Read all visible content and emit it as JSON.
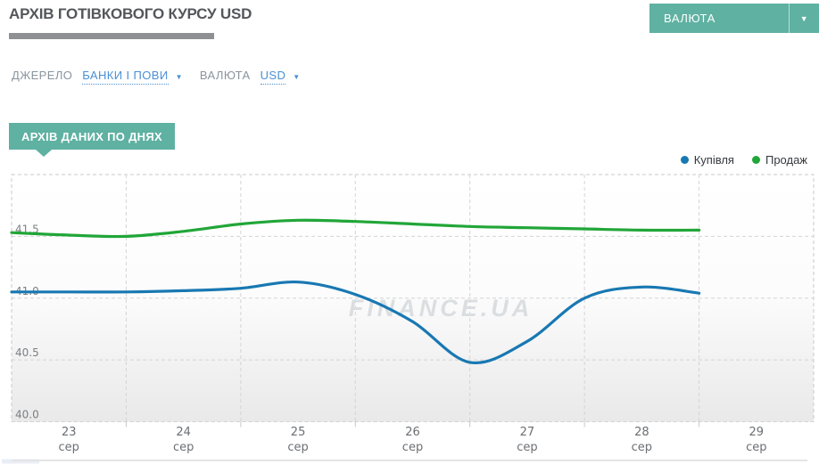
{
  "header": {
    "title": "АРХІВ ГОТІВКОВОГО КУРСУ USD",
    "currency_button_label": "ВАЛЮТА",
    "currency_button_icon": "chevron-down-icon"
  },
  "filters": {
    "source_label": "ДЖЕРЕЛО",
    "source_value": "БАНКИ І ПОВИ",
    "currency_label": "ВАЛЮТА",
    "currency_value": "USD"
  },
  "section_badge": "АРХІВ ДАНИХ ПО ДНЯХ",
  "colors": {
    "teal": "#5fb1a2",
    "link_blue": "#4a90d5",
    "buy_line": "#1878b2",
    "sell_line": "#21a638",
    "grid": "#d4d4d4",
    "plot_border": "#c9c9c9"
  },
  "chart_data": {
    "type": "line",
    "title": "",
    "xlabel": "",
    "ylabel": "",
    "x_categories": [
      "23",
      "24",
      "25",
      "26",
      "27",
      "28",
      "29"
    ],
    "x_month_label": "сер",
    "x_days": [
      22.5,
      23,
      23.5,
      24,
      24.5,
      25,
      25.5,
      26,
      26.5,
      27,
      27.5,
      28,
      28.5
    ],
    "series": [
      {
        "name": "Купівля",
        "color": "#1878b2",
        "values": [
          41.05,
          41.05,
          41.05,
          41.06,
          41.08,
          41.13,
          41.03,
          40.81,
          40.48,
          40.65,
          41.0,
          41.09,
          41.04
        ]
      },
      {
        "name": "Продаж",
        "color": "#21a638",
        "values": [
          41.53,
          41.51,
          41.5,
          41.54,
          41.6,
          41.63,
          41.62,
          41.6,
          41.58,
          41.57,
          41.56,
          41.55,
          41.55
        ]
      }
    ],
    "ylim": [
      40,
      42
    ],
    "yticks": [
      40.0,
      40.5,
      41.0,
      41.5
    ],
    "grid": "dashed",
    "legend_position": "top-right",
    "watermark": "FINANCE.UA"
  }
}
